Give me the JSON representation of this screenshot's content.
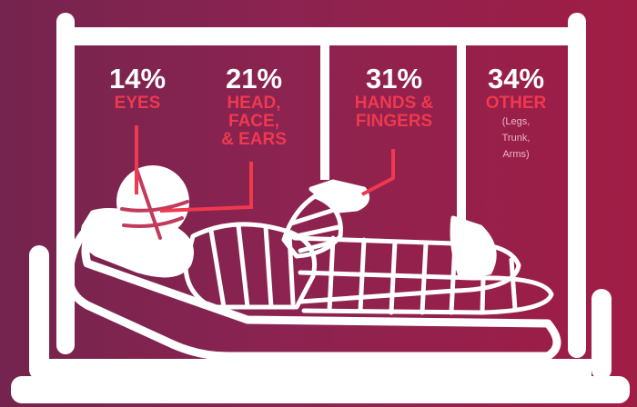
{
  "colors": {
    "background_left": "#74244e",
    "background_right": "#a01d45",
    "outline_white": "#ffffff",
    "accent_red": "#f0384f"
  },
  "stats": [
    {
      "percent": "14%",
      "label_lines": [
        "EYES"
      ],
      "note_lines": []
    },
    {
      "percent": "21%",
      "label_lines": [
        "HEAD,",
        "FACE,",
        "& EARS"
      ],
      "note_lines": []
    },
    {
      "percent": "31%",
      "label_lines": [
        "HANDS &",
        "FINGERS"
      ],
      "note_lines": []
    },
    {
      "percent": "34%",
      "label_lines": [
        "OTHER"
      ],
      "note_lines": [
        "(Legs,",
        "Trunk,",
        "Arms)"
      ]
    }
  ],
  "illustration": {
    "subject": "bandaged patient lying in hospital bed",
    "icons": [
      "hospital-bed-icon",
      "bandaged-patient-icon"
    ]
  }
}
